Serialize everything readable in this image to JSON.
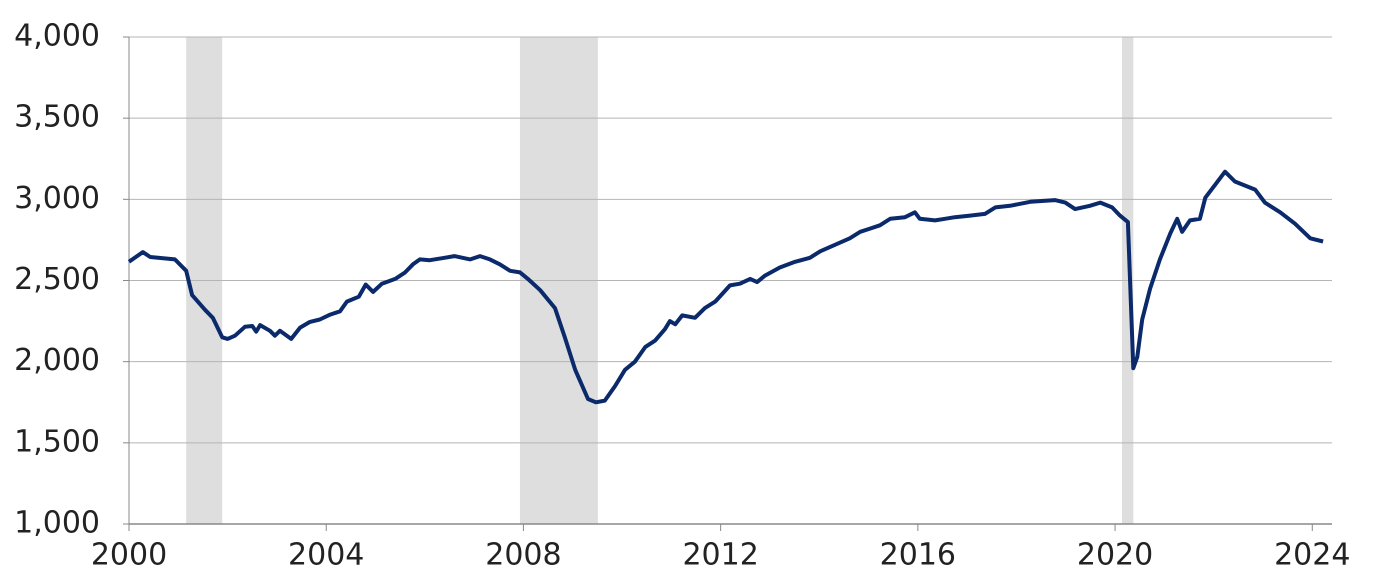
{
  "chart_data": {
    "type": "line",
    "xlim": [
      2000,
      2024.4
    ],
    "xticks": [
      2000,
      2004,
      2008,
      2012,
      2016,
      2020,
      2024
    ],
    "ylim": [
      1000,
      4000
    ],
    "yticks": [
      {
        "value": 1000,
        "label": "1,000"
      },
      {
        "value": 1500,
        "label": "1,500"
      },
      {
        "value": 2000,
        "label": "2,000"
      },
      {
        "value": 2500,
        "label": "2,500"
      },
      {
        "value": 3000,
        "label": "3,000"
      },
      {
        "value": 3500,
        "label": "3,500"
      },
      {
        "value": 4000,
        "label": "4,000"
      }
    ],
    "grid": true,
    "recessions": [
      [
        2001.16,
        2001.89
      ],
      [
        2007.93,
        2009.51
      ],
      [
        2020.14,
        2020.37
      ]
    ],
    "recession_color": "#dedede",
    "color": "#0b2a6b",
    "x": [
      2000.0,
      2000.28,
      2000.43,
      2000.93,
      2001.16,
      2001.28,
      2001.54,
      2001.7,
      2001.89,
      2002.0,
      2002.15,
      2002.35,
      2002.5,
      2002.58,
      2002.66,
      2002.86,
      2002.96,
      2003.06,
      2003.29,
      2003.47,
      2003.67,
      2003.87,
      2004.08,
      2004.28,
      2004.42,
      2004.66,
      2004.8,
      2004.95,
      2005.13,
      2005.4,
      2005.6,
      2005.76,
      2005.9,
      2006.1,
      2006.4,
      2006.6,
      2006.92,
      2007.12,
      2007.32,
      2007.52,
      2007.73,
      2007.93,
      2008.09,
      2008.34,
      2008.64,
      2008.84,
      2009.05,
      2009.31,
      2009.47,
      2009.65,
      2009.86,
      2010.06,
      2010.26,
      2010.47,
      2010.67,
      2010.87,
      2010.97,
      2011.08,
      2011.22,
      2011.48,
      2011.68,
      2011.89,
      2012.19,
      2012.39,
      2012.6,
      2012.74,
      2012.9,
      2013.2,
      2013.51,
      2013.81,
      2014.02,
      2014.32,
      2014.62,
      2014.83,
      2015.03,
      2015.23,
      2015.44,
      2015.74,
      2015.94,
      2016.04,
      2016.35,
      2016.55,
      2016.75,
      2017.06,
      2017.36,
      2017.57,
      2017.87,
      2018.28,
      2018.78,
      2018.99,
      2019.19,
      2019.49,
      2019.7,
      2019.94,
      2020.1,
      2020.26,
      2020.37,
      2020.45,
      2020.55,
      2020.71,
      2020.91,
      2021.12,
      2021.26,
      2021.36,
      2021.52,
      2021.72,
      2021.83,
      2022.03,
      2022.23,
      2022.43,
      2022.84,
      2023.04,
      2023.35,
      2023.65,
      2023.96,
      2024.22
    ],
    "values": [
      2615,
      2675,
      2645,
      2630,
      2560,
      2410,
      2320,
      2270,
      2150,
      2140,
      2160,
      2215,
      2220,
      2185,
      2225,
      2190,
      2160,
      2190,
      2140,
      2210,
      2245,
      2260,
      2290,
      2310,
      2370,
      2400,
      2475,
      2430,
      2480,
      2510,
      2550,
      2600,
      2630,
      2625,
      2640,
      2650,
      2630,
      2650,
      2630,
      2600,
      2560,
      2550,
      2510,
      2440,
      2330,
      2150,
      1950,
      1770,
      1750,
      1760,
      1850,
      1950,
      2000,
      2090,
      2130,
      2200,
      2250,
      2230,
      2285,
      2270,
      2330,
      2370,
      2470,
      2480,
      2510,
      2490,
      2530,
      2580,
      2615,
      2640,
      2680,
      2720,
      2760,
      2800,
      2820,
      2840,
      2880,
      2890,
      2920,
      2880,
      2870,
      2880,
      2890,
      2900,
      2910,
      2950,
      2960,
      2985,
      2995,
      2980,
      2940,
      2960,
      2980,
      2950,
      2900,
      2860,
      1960,
      2030,
      2260,
      2450,
      2630,
      2790,
      2880,
      2800,
      2870,
      2880,
      3010,
      3090,
      3170,
      3110,
      3060,
      2980,
      2920,
      2850,
      2760,
      2740
    ]
  }
}
